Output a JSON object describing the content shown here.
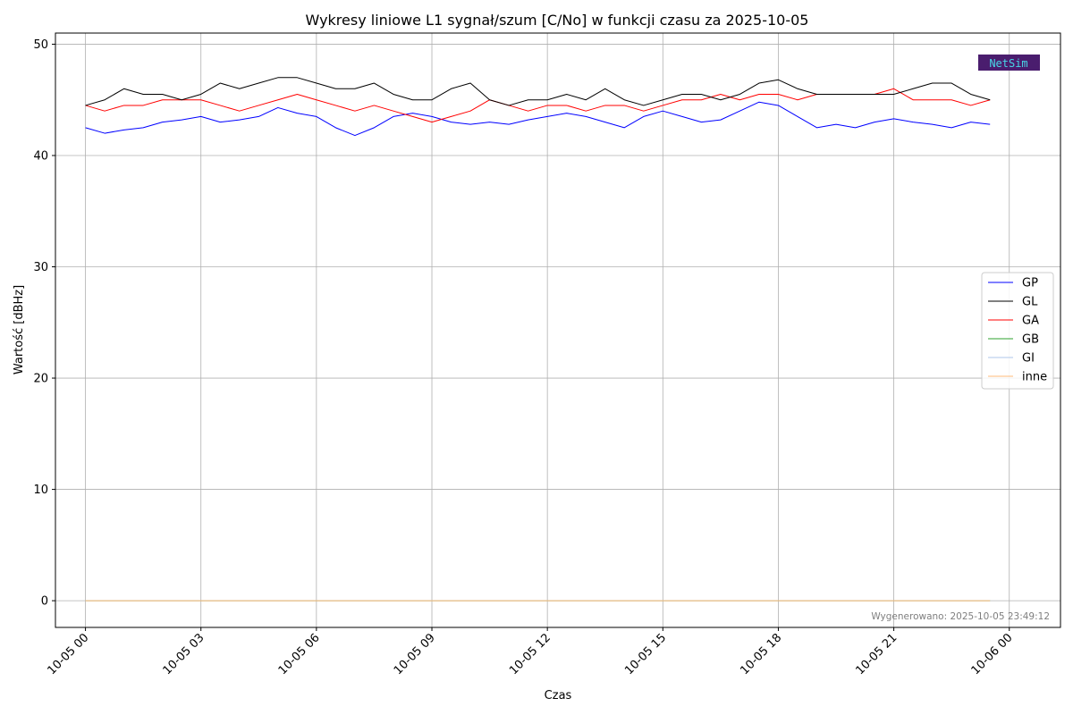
{
  "chart_data": {
    "type": "line",
    "title": "Wykresy liniowe L1 sygnał/szum [C/No] w funkcji czasu za 2025-10-05",
    "xlabel": "Czas",
    "ylabel": "Wartość [dBHz]",
    "x_unit": "hour of 2025-10-05",
    "xlim": [
      -0.78,
      25.33
    ],
    "ylim": [
      -2.4,
      51.0
    ],
    "grid": true,
    "legend_position": "center-right",
    "x_ticks": [
      {
        "value": 0,
        "label": "10-05 00"
      },
      {
        "value": 3,
        "label": "10-05 03"
      },
      {
        "value": 6,
        "label": "10-05 06"
      },
      {
        "value": 9,
        "label": "10-05 09"
      },
      {
        "value": 12,
        "label": "10-05 12"
      },
      {
        "value": 15,
        "label": "10-05 15"
      },
      {
        "value": 18,
        "label": "10-05 18"
      },
      {
        "value": 21,
        "label": "10-05 21"
      },
      {
        "value": 24,
        "label": "10-06 00"
      }
    ],
    "y_ticks": [
      0,
      10,
      20,
      30,
      40,
      50
    ],
    "x": [
      0,
      0.5,
      1,
      1.5,
      2,
      2.5,
      3,
      3.5,
      4,
      4.5,
      5,
      5.5,
      6,
      6.5,
      7,
      7.5,
      8,
      8.5,
      9,
      9.5,
      10,
      10.5,
      11,
      11.5,
      12,
      12.5,
      13,
      13.5,
      14,
      14.5,
      15,
      15.5,
      16,
      16.5,
      17,
      17.5,
      18,
      18.5,
      19,
      19.5,
      20,
      20.5,
      21,
      21.5,
      22,
      22.5,
      23,
      23.5
    ],
    "series": [
      {
        "name": "GP",
        "color": "#0000ff",
        "values": [
          42.5,
          42.0,
          42.3,
          42.5,
          43.0,
          43.2,
          43.5,
          43.0,
          43.2,
          43.5,
          44.3,
          43.8,
          43.5,
          42.5,
          41.8,
          42.5,
          43.5,
          43.8,
          43.5,
          43.0,
          42.8,
          43.0,
          42.8,
          43.2,
          43.5,
          43.8,
          43.5,
          43.0,
          42.5,
          43.5,
          44.0,
          43.5,
          43.0,
          43.2,
          44.0,
          44.8,
          44.5,
          43.5,
          42.5,
          42.8,
          42.5,
          43.0,
          43.3,
          43.0,
          42.8,
          42.5,
          43.0,
          42.8
        ]
      },
      {
        "name": "GL",
        "color": "#000000",
        "values": [
          44.5,
          45.0,
          46.0,
          45.5,
          45.5,
          45.0,
          45.5,
          46.5,
          46.0,
          46.5,
          47.0,
          47.0,
          46.5,
          46.0,
          46.0,
          46.5,
          45.5,
          45.0,
          45.0,
          46.0,
          46.5,
          45.0,
          44.5,
          45.0,
          45.0,
          45.5,
          45.0,
          46.0,
          45.0,
          44.5,
          45.0,
          45.5,
          45.5,
          45.0,
          45.5,
          46.5,
          46.8,
          46.0,
          45.5,
          45.5,
          45.5,
          45.5,
          45.5,
          46.0,
          46.5,
          46.5,
          45.5,
          45.0
        ]
      },
      {
        "name": "GA",
        "color": "#ff0000",
        "values": [
          44.5,
          44.0,
          44.5,
          44.5,
          45.0,
          45.0,
          45.0,
          44.5,
          44.0,
          44.5,
          45.0,
          45.5,
          45.0,
          44.5,
          44.0,
          44.5,
          44.0,
          43.5,
          43.0,
          43.5,
          44.0,
          45.0,
          44.5,
          44.0,
          44.5,
          44.5,
          44.0,
          44.5,
          44.5,
          44.0,
          44.5,
          45.0,
          45.0,
          45.5,
          45.0,
          45.5,
          45.5,
          45.0,
          45.5,
          45.5,
          45.5,
          45.5,
          46.0,
          45.0,
          45.0,
          45.0,
          44.5,
          45.0
        ]
      },
      {
        "name": "GB",
        "color": "#2ca02c",
        "values": [
          0,
          0,
          0,
          0,
          0,
          0,
          0,
          0,
          0,
          0,
          0,
          0,
          0,
          0,
          0,
          0,
          0,
          0,
          0,
          0,
          0,
          0,
          0,
          0,
          0,
          0,
          0,
          0,
          0,
          0,
          0,
          0,
          0,
          0,
          0,
          0,
          0,
          0,
          0,
          0,
          0,
          0,
          0,
          0,
          0,
          0,
          0,
          0
        ]
      },
      {
        "name": "GI",
        "color": "#aec7e8",
        "values": [
          0,
          0,
          0,
          0,
          0,
          0,
          0,
          0,
          0,
          0,
          0,
          0,
          0,
          0,
          0,
          0,
          0,
          0,
          0,
          0,
          0,
          0,
          0,
          0,
          0,
          0,
          0,
          0,
          0,
          0,
          0,
          0,
          0,
          0,
          0,
          0,
          0,
          0,
          0,
          0,
          0,
          0,
          0,
          0,
          0,
          0,
          0,
          0
        ]
      },
      {
        "name": "inne",
        "color": "#ffbb78",
        "values": [
          0,
          0,
          0,
          0,
          0,
          0,
          0,
          0,
          0,
          0,
          0,
          0,
          0,
          0,
          0,
          0,
          0,
          0,
          0,
          0,
          0,
          0,
          0,
          0,
          0,
          0,
          0,
          0,
          0,
          0,
          0,
          0,
          0,
          0,
          0,
          0,
          0,
          0,
          0,
          0,
          0,
          0,
          0,
          0,
          0,
          0,
          0,
          0
        ]
      }
    ],
    "annotation": "Wygenerowano: 2025-10-05 23:49:12",
    "logo_text": "NetSim"
  }
}
